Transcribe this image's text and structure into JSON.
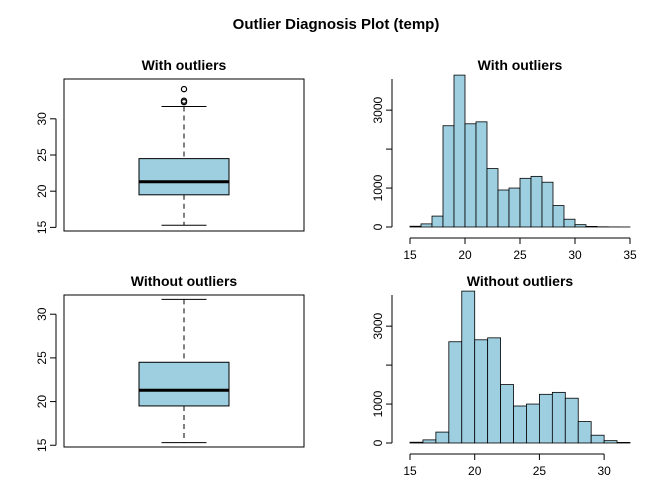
{
  "title": "Outlier Diagnosis Plot (temp)",
  "colors": {
    "fill": "#9ecfe0",
    "stroke": "#000000",
    "background": "#ffffff"
  },
  "chart_data": [
    {
      "type": "boxplot",
      "title": "With outliers",
      "ylim": [
        14.5,
        35.5
      ],
      "yticks": [
        15,
        20,
        25,
        30
      ],
      "stats": {
        "min": 15.3,
        "q1": 19.5,
        "median": 21.3,
        "q3": 24.5,
        "max": 31.7
      },
      "outliers": [
        32.3,
        32.5,
        34.1
      ]
    },
    {
      "type": "histogram",
      "title": "With outliers",
      "xlim": [
        15,
        35
      ],
      "ylim": [
        0,
        3800
      ],
      "xticks": [
        15,
        20,
        25,
        30,
        35
      ],
      "yticks": [
        0,
        1000,
        3000
      ],
      "bins": [
        {
          "x0": 15,
          "x1": 16,
          "count": 20
        },
        {
          "x0": 16,
          "x1": 17,
          "count": 80
        },
        {
          "x0": 17,
          "x1": 18,
          "count": 280
        },
        {
          "x0": 18,
          "x1": 19,
          "count": 2600
        },
        {
          "x0": 19,
          "x1": 20,
          "count": 3900
        },
        {
          "x0": 20,
          "x1": 21,
          "count": 2650
        },
        {
          "x0": 21,
          "x1": 22,
          "count": 2700
        },
        {
          "x0": 22,
          "x1": 23,
          "count": 1500
        },
        {
          "x0": 23,
          "x1": 24,
          "count": 950
        },
        {
          "x0": 24,
          "x1": 25,
          "count": 1000
        },
        {
          "x0": 25,
          "x1": 26,
          "count": 1250
        },
        {
          "x0": 26,
          "x1": 27,
          "count": 1300
        },
        {
          "x0": 27,
          "x1": 28,
          "count": 1150
        },
        {
          "x0": 28,
          "x1": 29,
          "count": 550
        },
        {
          "x0": 29,
          "x1": 30,
          "count": 200
        },
        {
          "x0": 30,
          "x1": 31,
          "count": 60
        },
        {
          "x0": 31,
          "x1": 32,
          "count": 15
        },
        {
          "x0": 32,
          "x1": 33,
          "count": 5
        },
        {
          "x0": 33,
          "x1": 34,
          "count": 2
        },
        {
          "x0": 34,
          "x1": 35,
          "count": 1
        }
      ]
    },
    {
      "type": "boxplot",
      "title": "Without outliers",
      "ylim": [
        14.8,
        32.2
      ],
      "yticks": [
        15,
        20,
        25,
        30
      ],
      "stats": {
        "min": 15.3,
        "q1": 19.5,
        "median": 21.3,
        "q3": 24.5,
        "max": 31.7
      },
      "outliers": []
    },
    {
      "type": "histogram",
      "title": "Without outliers",
      "xlim": [
        15,
        32
      ],
      "ylim": [
        0,
        3800
      ],
      "xticks": [
        15,
        20,
        25,
        30
      ],
      "yticks": [
        0,
        1000,
        3000
      ],
      "bins": [
        {
          "x0": 15,
          "x1": 16,
          "count": 20
        },
        {
          "x0": 16,
          "x1": 17,
          "count": 80
        },
        {
          "x0": 17,
          "x1": 18,
          "count": 280
        },
        {
          "x0": 18,
          "x1": 19,
          "count": 2600
        },
        {
          "x0": 19,
          "x1": 20,
          "count": 3900
        },
        {
          "x0": 20,
          "x1": 21,
          "count": 2650
        },
        {
          "x0": 21,
          "x1": 22,
          "count": 2700
        },
        {
          "x0": 22,
          "x1": 23,
          "count": 1500
        },
        {
          "x0": 23,
          "x1": 24,
          "count": 950
        },
        {
          "x0": 24,
          "x1": 25,
          "count": 1000
        },
        {
          "x0": 25,
          "x1": 26,
          "count": 1250
        },
        {
          "x0": 26,
          "x1": 27,
          "count": 1300
        },
        {
          "x0": 27,
          "x1": 28,
          "count": 1150
        },
        {
          "x0": 28,
          "x1": 29,
          "count": 550
        },
        {
          "x0": 29,
          "x1": 30,
          "count": 200
        },
        {
          "x0": 30,
          "x1": 31,
          "count": 60
        },
        {
          "x0": 31,
          "x1": 32,
          "count": 15
        }
      ]
    }
  ]
}
